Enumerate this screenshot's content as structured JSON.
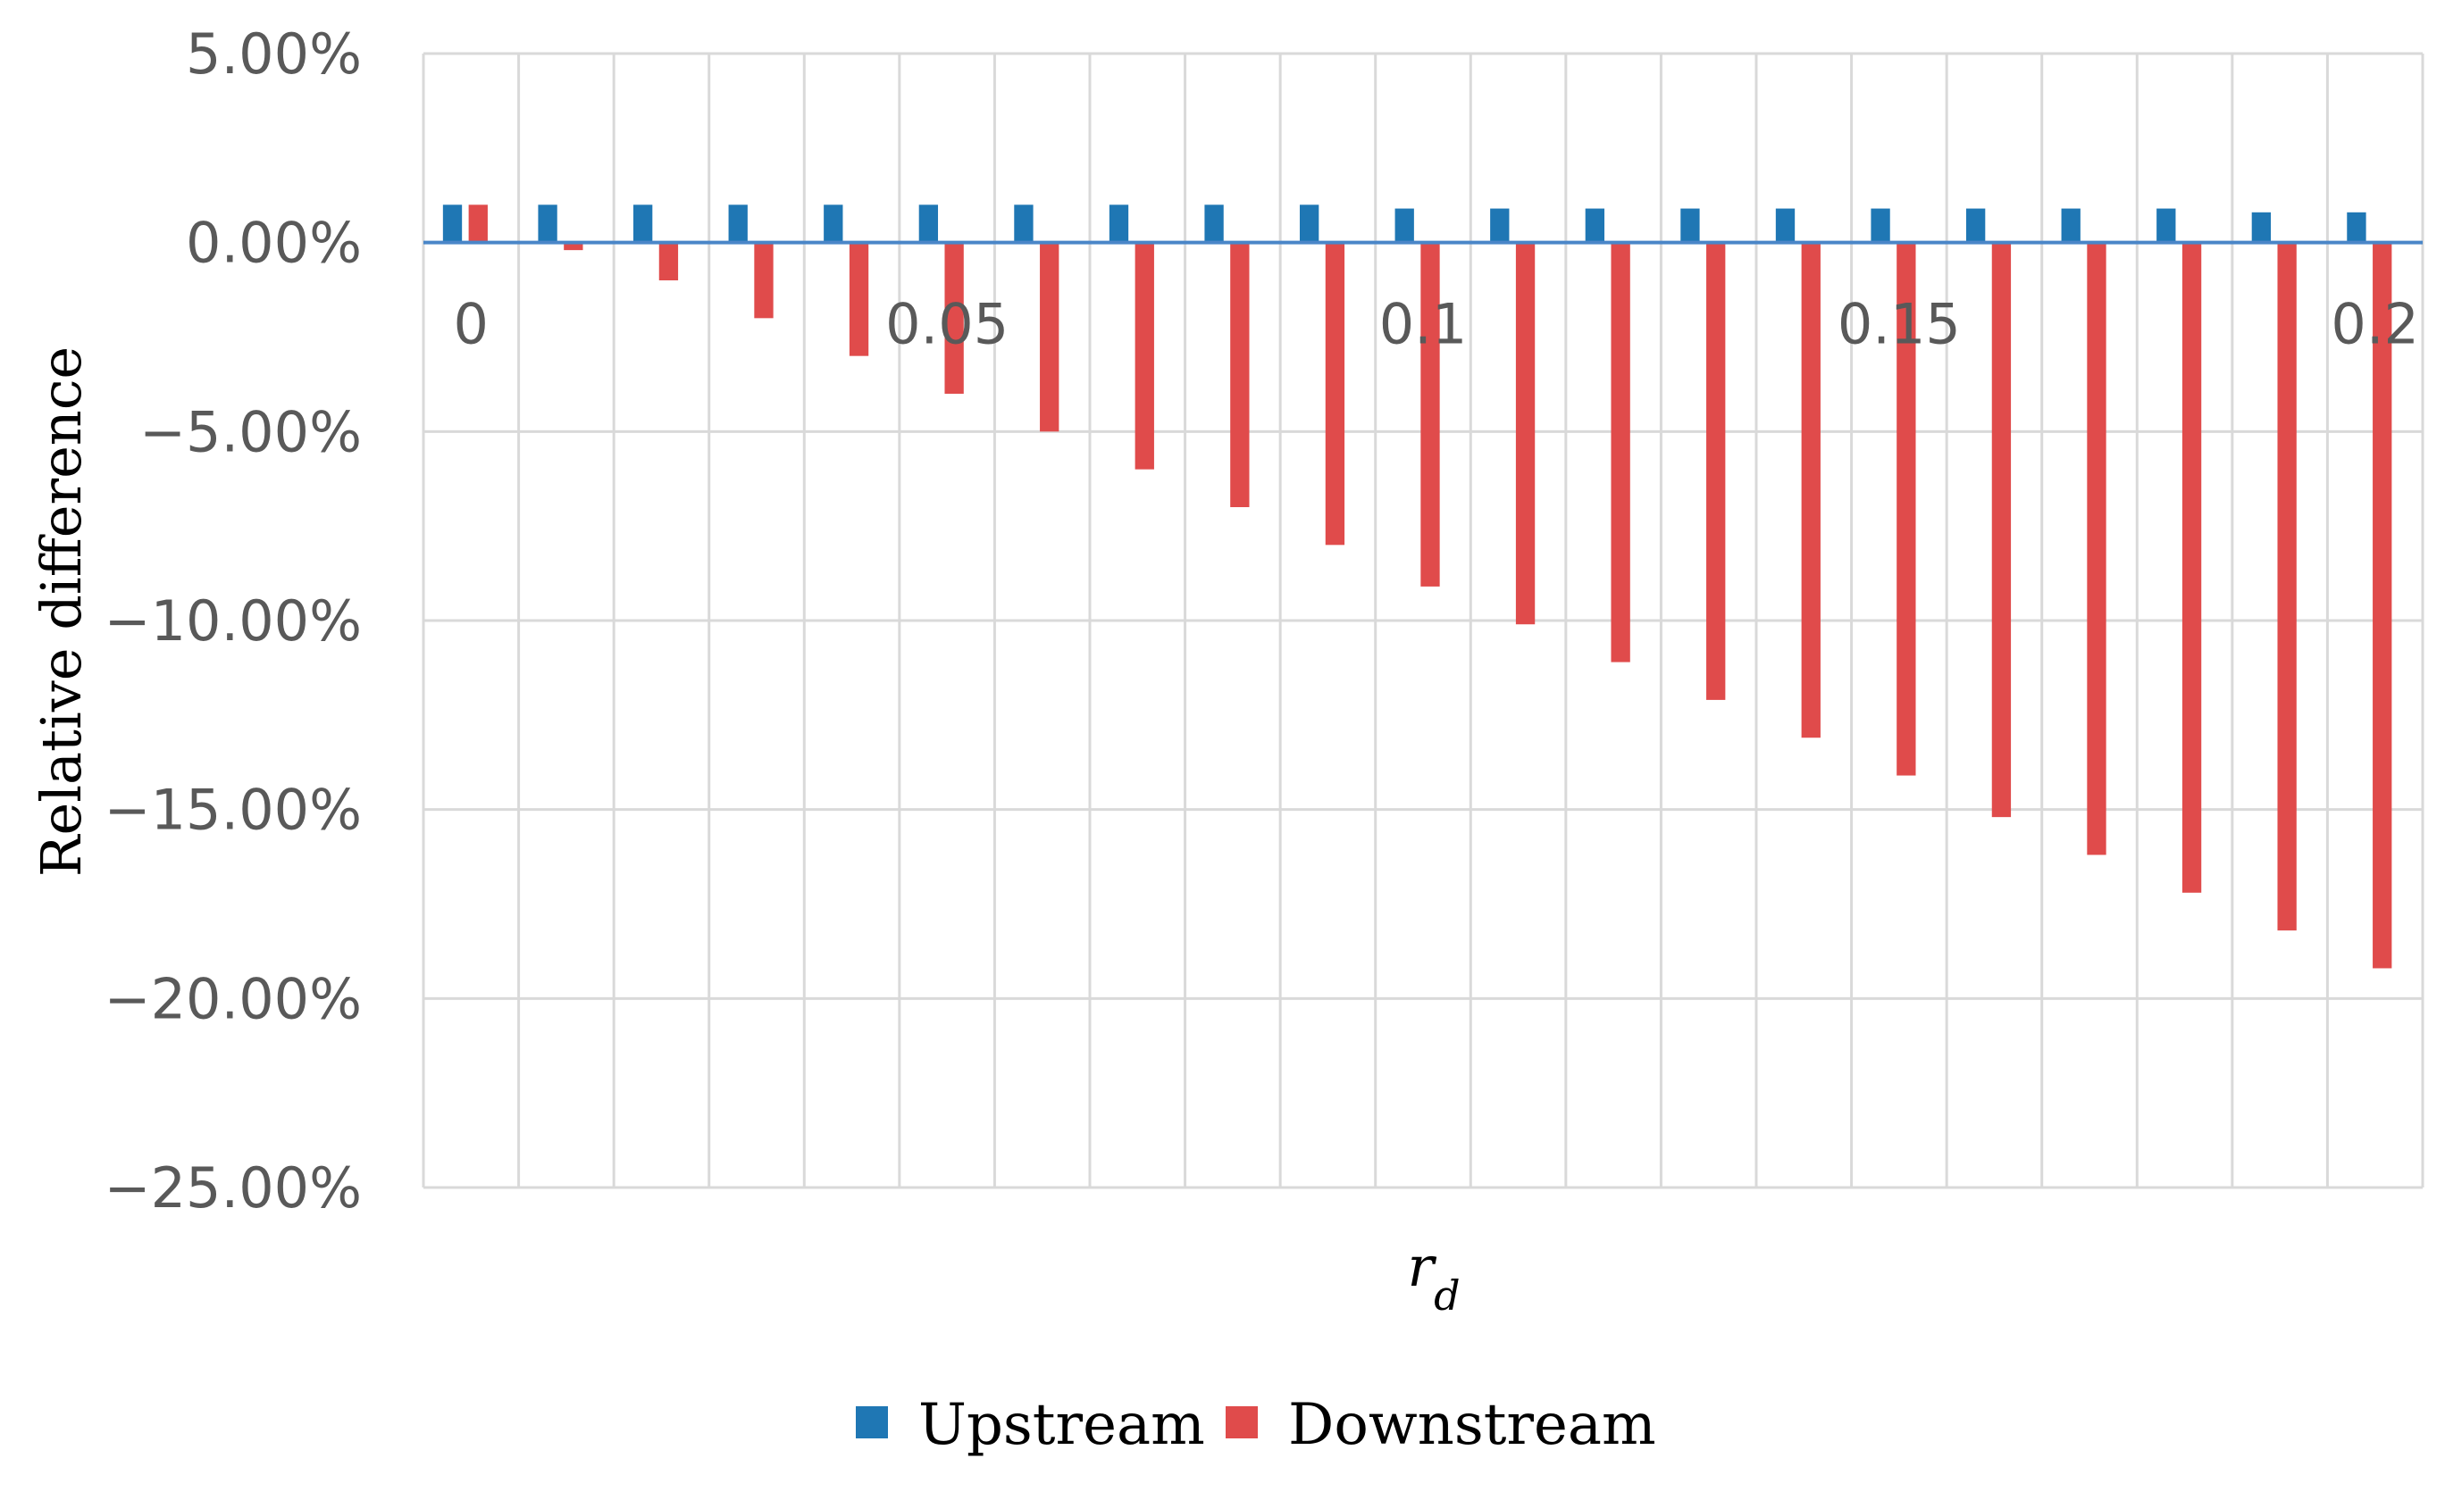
{
  "chart_data": {
    "type": "bar",
    "title": "",
    "xlabel": "r",
    "xlabel_subscript": "d",
    "ylabel": "Relative difference",
    "ylim": [
      -25,
      5
    ],
    "y_step": 5,
    "y_tick_labels": [
      "5.00%",
      "0.00%",
      "−5.00%",
      "−10.00%",
      "−15.00%",
      "−20.00%",
      "−25.00%"
    ],
    "x_tick_labels": [
      {
        "category_index": 0,
        "label": "0"
      },
      {
        "category_index": 5,
        "label": "0.05"
      },
      {
        "category_index": 10,
        "label": "0.1"
      },
      {
        "category_index": 15,
        "label": "0.15"
      },
      {
        "category_index": 20,
        "label": "0.2"
      }
    ],
    "categories": [
      "0",
      "0.01",
      "0.02",
      "0.03",
      "0.04",
      "0.05",
      "0.06",
      "0.07",
      "0.08",
      "0.09",
      "0.1",
      "0.11",
      "0.12",
      "0.13",
      "0.14",
      "0.15",
      "0.16",
      "0.17",
      "0.18",
      "0.19",
      "0.2"
    ],
    "grid": true,
    "legend_position": "bottom",
    "series": [
      {
        "name": "Upstream",
        "color": "#1f77b4",
        "values": [
          1.0,
          1.0,
          1.0,
          1.0,
          1.0,
          1.0,
          1.0,
          1.0,
          1.0,
          1.0,
          0.9,
          0.9,
          0.9,
          0.9,
          0.9,
          0.9,
          0.9,
          0.9,
          0.9,
          0.8,
          0.8
        ]
      },
      {
        "name": "Downstream",
        "color": "#e04b4b",
        "values": [
          1.0,
          -0.2,
          -1.0,
          -2.0,
          -3.0,
          -4.0,
          -5.0,
          -6.0,
          -7.0,
          -8.0,
          -9.1,
          -10.1,
          -11.1,
          -12.1,
          -13.1,
          -14.1,
          -15.2,
          -16.2,
          -17.2,
          -18.2,
          -19.2
        ]
      }
    ]
  }
}
